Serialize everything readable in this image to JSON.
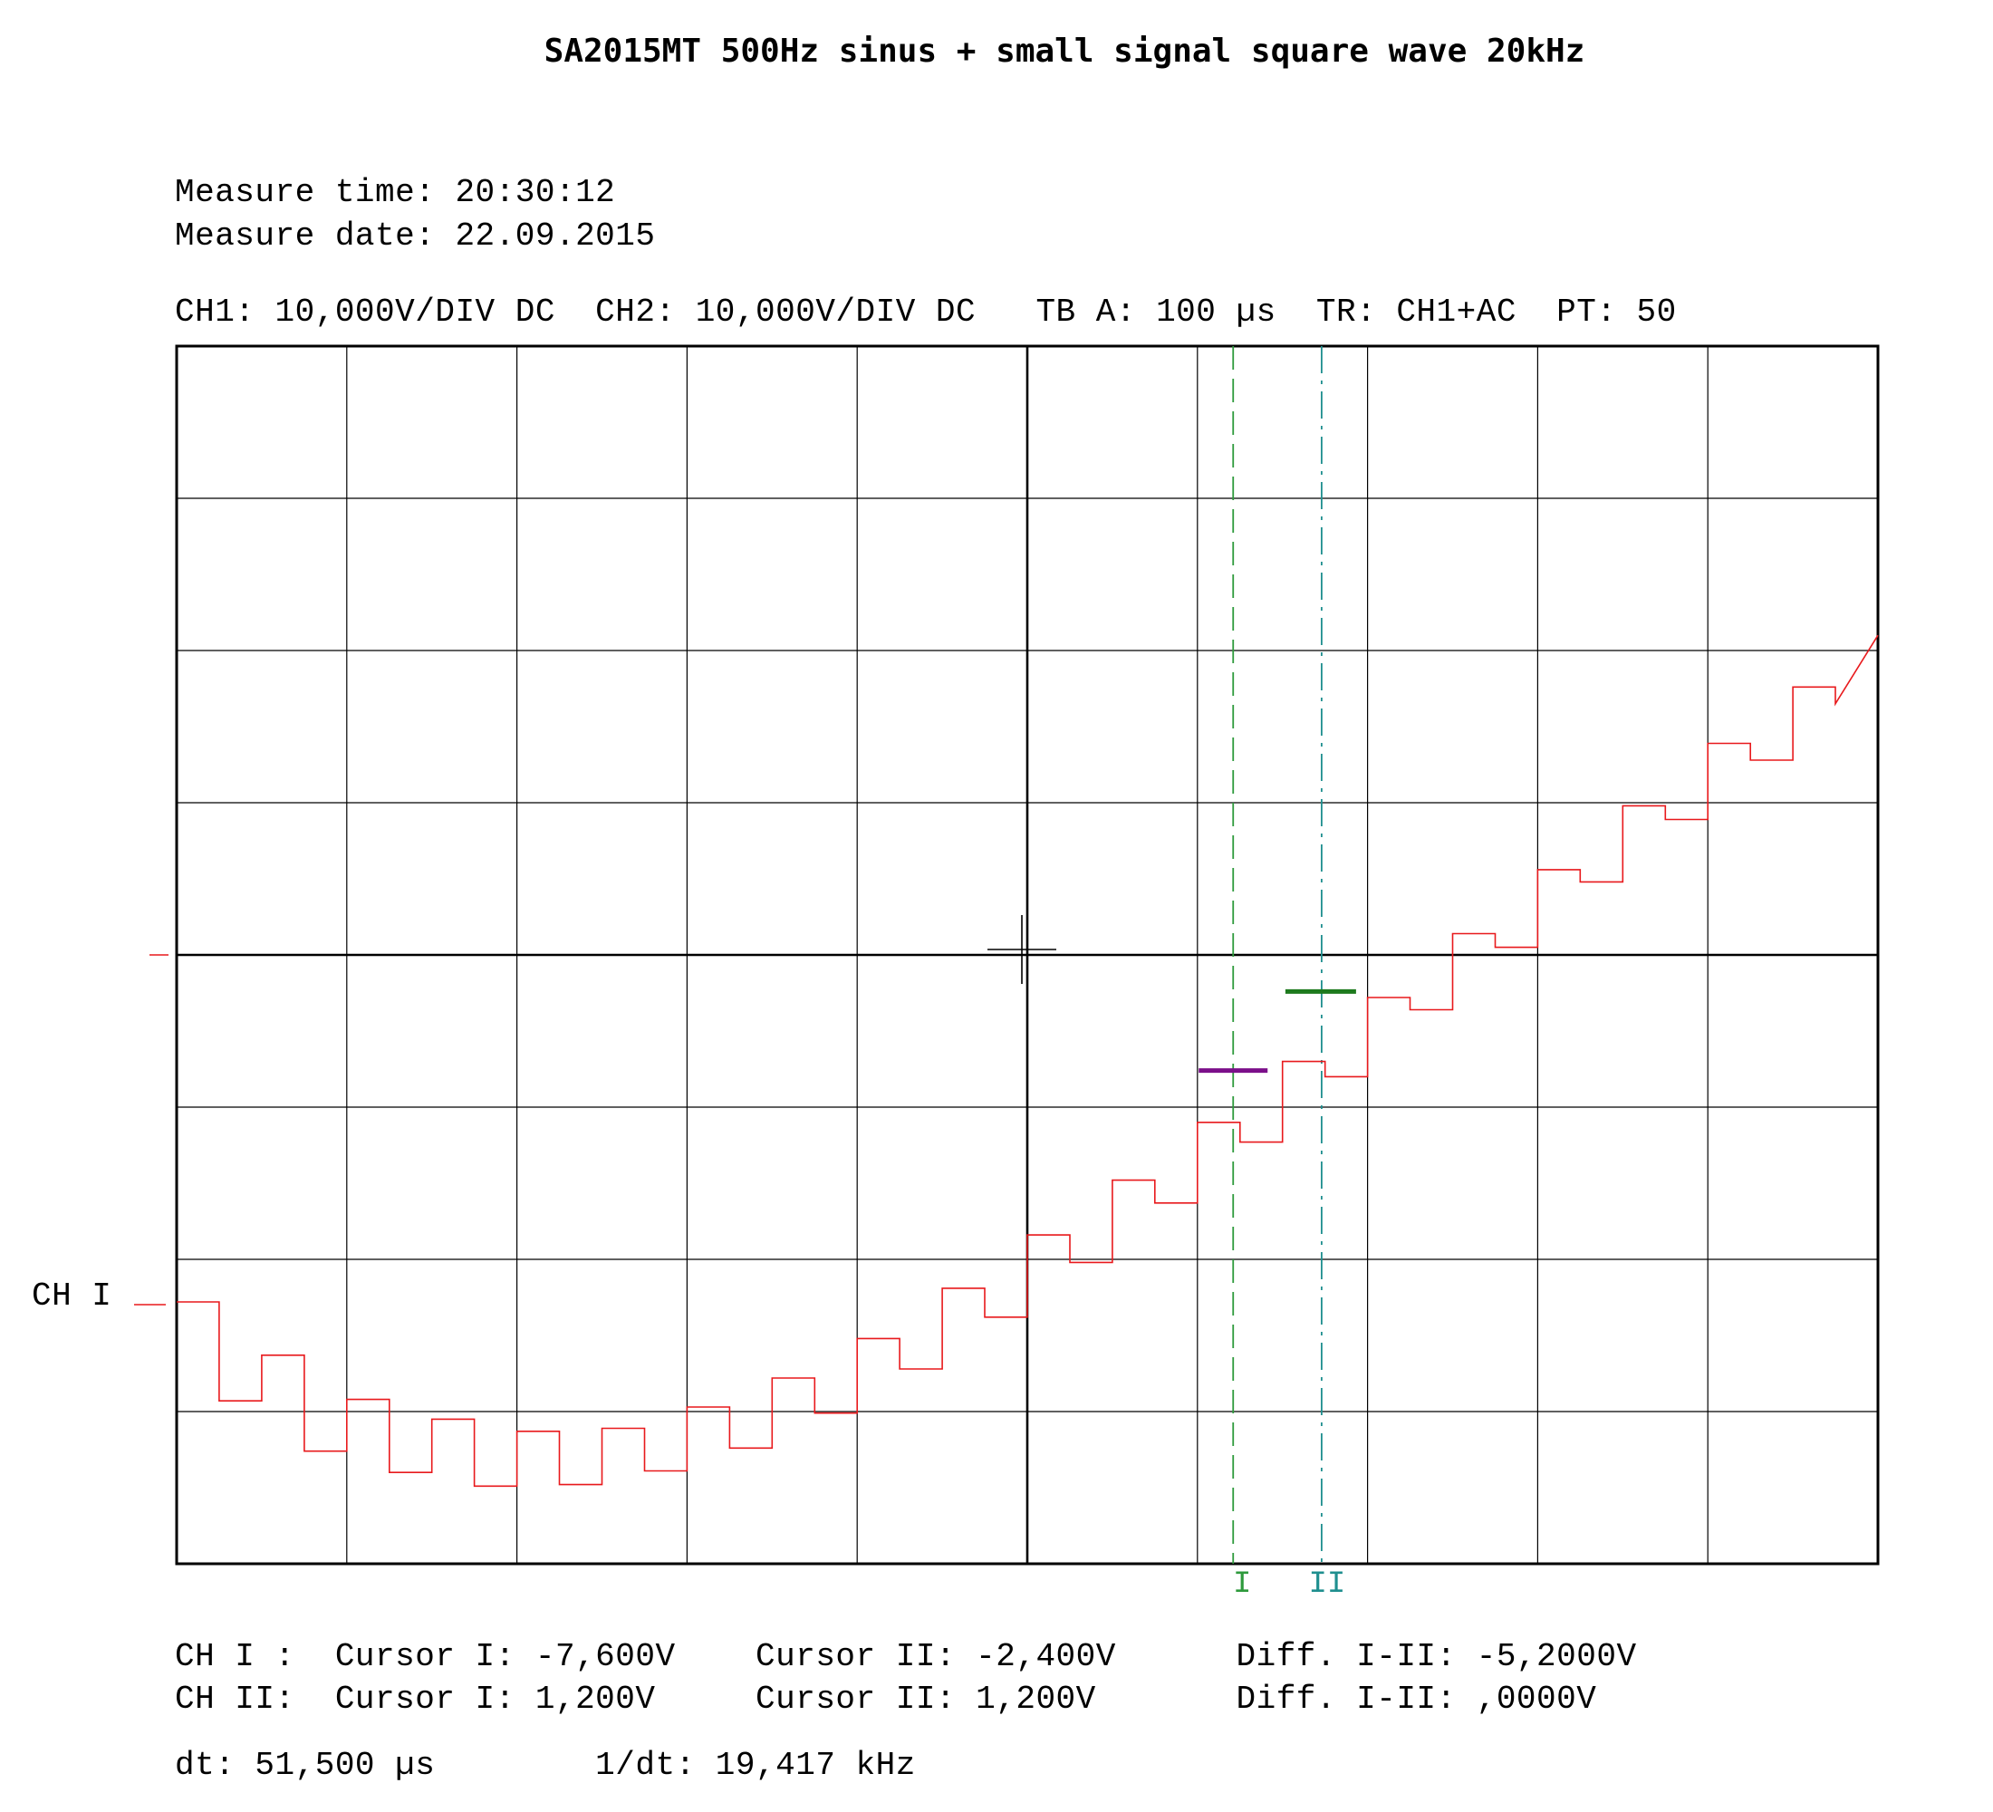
{
  "title": "SA2015MT 500Hz sinus + small signal square wave 20kHz",
  "measure": {
    "time_line": "Measure time: 20:30:12",
    "date_line": "Measure date: 22.09.2015"
  },
  "settings_line": "CH1: 10,000V/DIV DC  CH2: 10,000V/DIV DC   TB A: 100 µs  TR: CH1+AC  PT: 50",
  "channel_marker_label": "CH I",
  "cursor_labels": {
    "cursor1": "I",
    "cursor2": "II"
  },
  "readouts": {
    "ch1_line": "CH I :  Cursor I: -7,600V    Cursor II: -2,400V      Diff. I-II: -5,2000V",
    "ch2_line": "CH II:  Cursor I: 1,200V     Cursor II: 1,200V       Diff. I-II: ,0000V",
    "dt_line": "dt: 51,500 µs        1/dt: 19,417 kHz"
  },
  "colors": {
    "trace": "#e8191c",
    "cursor1": "#2e9a3c",
    "cursor2": "#1f8f8f",
    "marker1": "#7b0f8a",
    "marker2": "#1d7a1d",
    "grid": "#000000"
  },
  "chart_data": {
    "type": "line",
    "title": "SA2015MT 500Hz sinus + small signal square wave 20kHz",
    "xlabel": "",
    "ylabel": "",
    "xlim": [
      0,
      1000
    ],
    "ylim": [
      -40,
      40
    ],
    "grid": true,
    "units": {
      "x": "µs",
      "y": "V"
    },
    "series": [
      {
        "waveform": "500Hz sine with superimposed 20kHz square wave",
        "x": [
          0,
          25,
          25,
          50,
          50,
          75,
          75,
          100,
          100,
          125,
          125,
          150,
          150,
          175,
          175,
          200,
          200,
          225,
          225,
          250,
          250,
          275,
          275,
          300,
          300,
          325,
          325,
          350,
          350,
          375,
          375,
          400,
          400,
          425,
          425,
          450,
          450,
          475,
          475,
          500,
          500,
          525,
          525,
          550,
          550,
          575,
          575,
          600,
          600,
          625,
          625,
          650,
          650,
          675,
          675,
          700,
          700,
          725,
          725,
          750,
          750,
          775,
          775,
          800,
          800,
          825,
          825,
          850,
          850,
          875,
          875,
          900,
          900,
          925,
          925,
          950,
          950,
          975,
          975,
          1000
        ],
        "y": [
          -22.8,
          -22.8,
          -29.3,
          -29.3,
          -26.3,
          -26.3,
          -32.6,
          -32.6,
          -29.2,
          -29.2,
          -34.0,
          -34.0,
          -30.5,
          -30.5,
          -34.9,
          -34.9,
          -31.3,
          -31.3,
          -34.8,
          -34.8,
          -31.1,
          -31.1,
          -33.9,
          -33.9,
          -29.7,
          -29.7,
          -32.4,
          -32.4,
          -27.8,
          -27.8,
          -30.1,
          -30.1,
          -25.2,
          -25.2,
          -27.2,
          -27.2,
          -21.9,
          -21.9,
          -23.8,
          -23.8,
          -18.4,
          -18.4,
          -20.2,
          -20.2,
          -14.8,
          -14.8,
          -16.3,
          -16.3,
          -11.0,
          -11.0,
          -12.3,
          -12.3,
          -7.0,
          -7.0,
          -8.0,
          -8.0,
          -2.8,
          -2.8,
          -3.6,
          -3.6,
          1.4,
          1.4,
          0.5,
          0.5,
          5.6,
          5.6,
          4.8,
          4.8,
          9.8,
          9.8,
          8.9,
          8.9,
          13.9,
          13.9,
          12.8,
          12.8,
          17.6,
          17.6,
          16.5,
          21.0
        ]
      }
    ],
    "cursors": {
      "cursor_I": {
        "x": 621,
        "level": -7.6
      },
      "cursor_II": {
        "x": 673,
        "level": -2.4
      }
    },
    "readouts": {
      "ch1": {
        "cursor_I": "-7,600V",
        "cursor_II": "-2,400V",
        "diff": "-5,2000V"
      },
      "ch2": {
        "cursor_I": "1,200V",
        "cursor_II": "1,200V",
        "diff": ",0000V"
      },
      "dt": "51,500 µs",
      "inv_dt": "19,417 kHz"
    }
  }
}
